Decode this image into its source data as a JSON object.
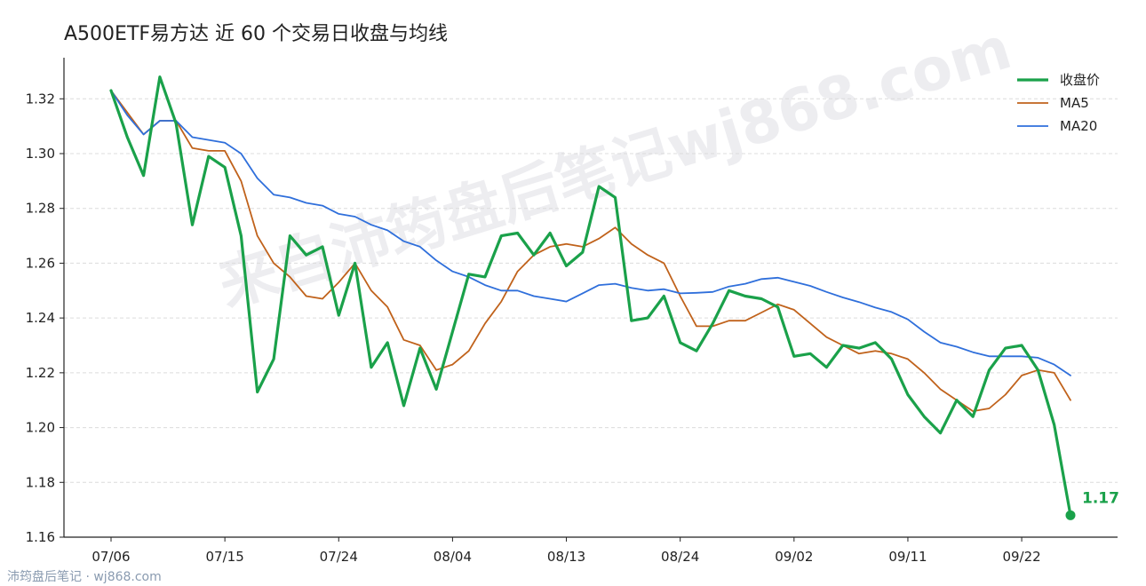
{
  "colors": {
    "close": "#1aa14a",
    "ma5": "#c0621b",
    "ma20": "#2f6fdb",
    "grid": "#dcdcdc",
    "axis": "#222222"
  },
  "watermark": "来自沛筠盘后笔记wj868.com",
  "footer": "沛筠盘后笔记 · wj868.com",
  "chart_data": {
    "type": "line",
    "title": "A500ETF易方达 近 60 个交易日收盘与均线",
    "xlabel": "",
    "ylabel": "",
    "ylim": [
      1.16,
      1.335
    ],
    "yticks": [
      1.16,
      1.18,
      1.2,
      1.22,
      1.24,
      1.26,
      1.28,
      1.3,
      1.32
    ],
    "xtick_labels": [
      "07/06",
      "07/15",
      "07/24",
      "08/04",
      "08/13",
      "08/24",
      "09/02",
      "09/11",
      "09/22"
    ],
    "xtick_index": [
      0,
      7,
      14,
      21,
      28,
      35,
      42,
      49,
      56
    ],
    "grid": "horizontal dashed",
    "legend_position": "top-right",
    "last_value_label": "1.17",
    "series": [
      {
        "name": "收盘价",
        "values": [
          1.323,
          1.306,
          1.292,
          1.328,
          1.311,
          1.274,
          1.299,
          1.295,
          1.27,
          1.213,
          1.225,
          1.27,
          1.263,
          1.266,
          1.241,
          1.26,
          1.222,
          1.231,
          1.208,
          1.229,
          1.214,
          1.235,
          1.256,
          1.255,
          1.27,
          1.271,
          1.263,
          1.271,
          1.259,
          1.264,
          1.288,
          1.284,
          1.239,
          1.24,
          1.248,
          1.231,
          1.228,
          1.238,
          1.25,
          1.248,
          1.247,
          1.244,
          1.226,
          1.227,
          1.222,
          1.23,
          1.229,
          1.231,
          1.225,
          1.212,
          1.204,
          1.198,
          1.21,
          1.204,
          1.221,
          1.229,
          1.23,
          1.221,
          1.201,
          1.168
        ]
      },
      {
        "name": "MA5",
        "values": [
          1.323,
          1.315,
          1.307,
          1.312,
          1.312,
          1.302,
          1.301,
          1.301,
          1.29,
          1.27,
          1.26,
          1.255,
          1.248,
          1.247,
          1.253,
          1.26,
          1.25,
          1.244,
          1.232,
          1.23,
          1.221,
          1.223,
          1.228,
          1.238,
          1.246,
          1.257,
          1.263,
          1.266,
          1.267,
          1.266,
          1.269,
          1.273,
          1.267,
          1.263,
          1.26,
          1.248,
          1.237,
          1.237,
          1.239,
          1.239,
          1.242,
          1.245,
          1.243,
          1.238,
          1.233,
          1.23,
          1.227,
          1.228,
          1.227,
          1.225,
          1.22,
          1.214,
          1.21,
          1.206,
          1.207,
          1.212,
          1.219,
          1.221,
          1.22,
          1.21
        ]
      },
      {
        "name": "MA20",
        "values": [
          1.323,
          1.314,
          1.307,
          1.312,
          1.312,
          1.306,
          1.305,
          1.304,
          1.3,
          1.291,
          1.285,
          1.284,
          1.282,
          1.281,
          1.278,
          1.277,
          1.274,
          1.272,
          1.268,
          1.266,
          1.261,
          1.257,
          1.255,
          1.252,
          1.25,
          1.25,
          1.248,
          1.247,
          1.246,
          1.249,
          1.252,
          1.2525,
          1.251,
          1.25,
          1.2505,
          1.249,
          1.2492,
          1.2495,
          1.2515,
          1.2525,
          1.2542,
          1.2547,
          1.2532,
          1.2517,
          1.2495,
          1.2475,
          1.2458,
          1.2438,
          1.2422,
          1.2395,
          1.235,
          1.231,
          1.2295,
          1.2275,
          1.226,
          1.226,
          1.226,
          1.2255,
          1.223,
          1.219
        ]
      }
    ]
  }
}
